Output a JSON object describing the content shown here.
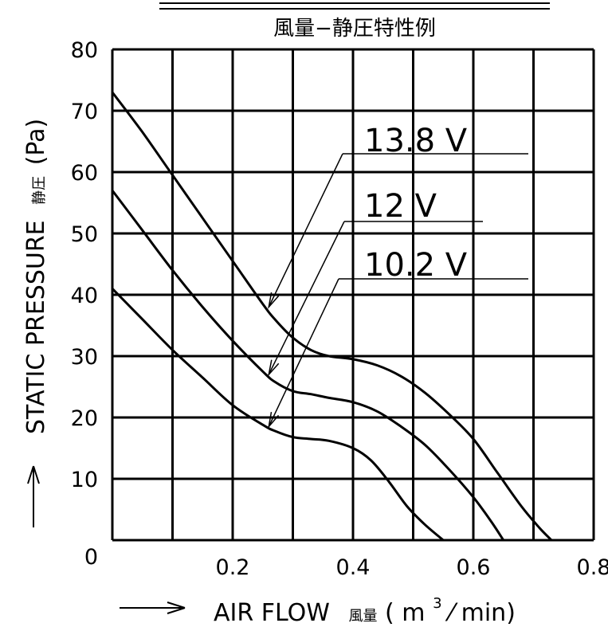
{
  "chart_data": {
    "type": "line",
    "title": "風量−静圧特性例",
    "xlabel": "AIR FLOW",
    "xlabel_jp": "風量",
    "xlabel_unit_open": "(",
    "xlabel_unit_m": "m",
    "xlabel_unit_sup": "3",
    "xlabel_unit_rest": "⁄ min)",
    "ylabel": "STATIC PRESSURE",
    "ylabel_jp": "静圧",
    "ylabel_unit": "(Pa)",
    "xlim": [
      0,
      0.8
    ],
    "ylim": [
      0,
      80
    ],
    "x_ticks": [
      {
        "value": 0,
        "label": "0"
      },
      {
        "value": 0.2,
        "label": "0.2"
      },
      {
        "value": 0.4,
        "label": "0.4"
      },
      {
        "value": 0.6,
        "label": "0.6"
      },
      {
        "value": 0.8,
        "label": "0.8"
      }
    ],
    "y_ticks": [
      {
        "value": 10,
        "label": "10"
      },
      {
        "value": 20,
        "label": "20"
      },
      {
        "value": 30,
        "label": "30"
      },
      {
        "value": 40,
        "label": "40"
      },
      {
        "value": 50,
        "label": "50"
      },
      {
        "value": 60,
        "label": "60"
      },
      {
        "value": 70,
        "label": "70"
      },
      {
        "value": 80,
        "label": "80"
      }
    ],
    "grid": true,
    "grid_x_step": 0.1,
    "grid_y_step": 10,
    "series": [
      {
        "name": "13.8 V",
        "x": [
          0,
          0.05,
          0.1,
          0.15,
          0.2,
          0.25,
          0.27,
          0.3,
          0.33,
          0.36,
          0.4,
          0.44,
          0.48,
          0.52,
          0.56,
          0.6,
          0.64,
          0.68,
          0.71,
          0.73
        ],
        "y": [
          73,
          66.5,
          59.5,
          52.5,
          45.5,
          38.5,
          36,
          33,
          31,
          30,
          29.5,
          28.5,
          26.7,
          24,
          20.5,
          16.5,
          11,
          5.5,
          2,
          0
        ],
        "label_anchor": [
          0.26,
          38
        ]
      },
      {
        "name": "12 V",
        "x": [
          0,
          0.05,
          0.1,
          0.15,
          0.2,
          0.25,
          0.27,
          0.3,
          0.33,
          0.36,
          0.4,
          0.44,
          0.48,
          0.52,
          0.56,
          0.6,
          0.63,
          0.65
        ],
        "y": [
          57,
          50.5,
          44,
          38,
          32.5,
          27.5,
          25.8,
          24.3,
          23.8,
          23.2,
          22.5,
          21,
          18.5,
          15.5,
          11.5,
          7,
          3,
          0
        ],
        "label_anchor": [
          0.26,
          27
        ]
      },
      {
        "name": "10.2 V",
        "x": [
          0,
          0.05,
          0.1,
          0.15,
          0.2,
          0.25,
          0.27,
          0.3,
          0.33,
          0.36,
          0.4,
          0.43,
          0.46,
          0.49,
          0.52,
          0.55
        ],
        "y": [
          41,
          36,
          31,
          26.5,
          22,
          18.8,
          17.8,
          16.8,
          16.5,
          16.2,
          15,
          13,
          9.5,
          5.5,
          2.5,
          0
        ],
        "label_anchor": [
          0.26,
          18.5
        ]
      }
    ]
  }
}
